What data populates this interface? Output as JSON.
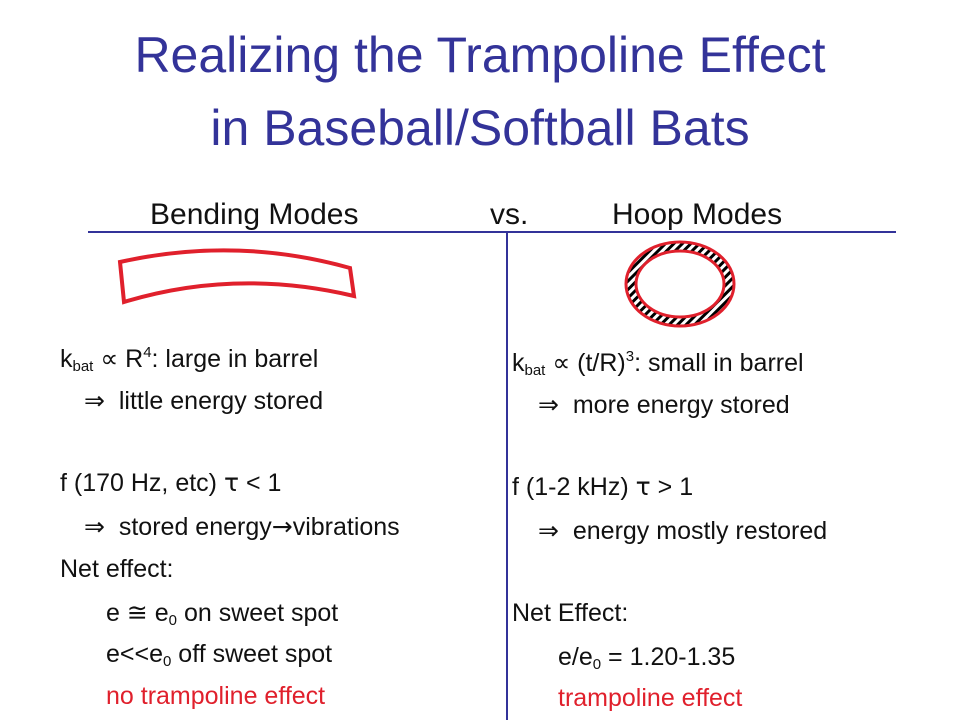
{
  "title": {
    "line1": "Realizing the Trampoline Effect",
    "line2": "in Baseball/Softball Bats"
  },
  "header": {
    "bending": "Bending Modes",
    "vs": "vs.",
    "hoop": "Hoop Modes"
  },
  "left": {
    "k_pre": "k",
    "k_sub": "bat",
    "k_prop": "∝",
    "k_R": "R",
    "k_exp": "4",
    "k_post": ":   large in barrel",
    "stored_arrow": "⇒",
    "stored_text": "little energy stored",
    "f_pre": "f (170 Hz, etc)",
    "f_tau": "τ",
    "f_post": "< 1",
    "vib_arrow": "⇒",
    "vib_pre": "stored energy",
    "vib_arrow2": "→",
    "vib_post": "vibrations",
    "net": "Net effect:",
    "e1_pre": "e",
    "e1_approx": "≅",
    "e1_e": "e",
    "e1_sub": "0",
    "e1_post": "on sweet spot",
    "e2_pre": "e<<e",
    "e2_sub": "0",
    "e2_post": " off sweet spot",
    "no_tramp": "no trampoline effect"
  },
  "right": {
    "k_pre": "k",
    "k_sub": "bat",
    "k_prop": "∝",
    "k_paren": "(t/R)",
    "k_exp": "3",
    "k_post": ":  small in barrel",
    "stored_arrow": "⇒",
    "stored_text": "more energy stored",
    "f_pre": "f (1-2 kHz)",
    "f_tau": "τ",
    "f_post": "> 1",
    "rest_arrow": "⇒",
    "rest_text": "energy mostly restored",
    "net": "Net Effect:",
    "e_pre": "e/e",
    "e_sub": "0",
    "e_post": " = 1.20-1.35",
    "tramp": "trampoline effect"
  },
  "colors": {
    "title": "#333399",
    "rules": "#333399",
    "accent_red": "#e0202c"
  },
  "icons": {
    "bent_bar": "bending-mode-bar",
    "hoop_ring": "hoop-mode-ring"
  }
}
